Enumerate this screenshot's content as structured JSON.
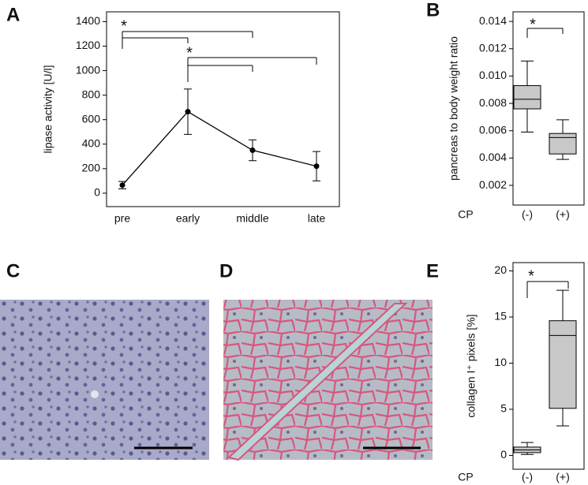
{
  "chart_data": [
    {
      "type": "line",
      "panel_label": "A",
      "ylabel": "lipase activity [U/l]",
      "categories": [
        "pre",
        "early",
        "middle",
        "late"
      ],
      "values": [
        65,
        665,
        350,
        220
      ],
      "errors": [
        30,
        185,
        85,
        120
      ],
      "color": "#000000",
      "ylim": [
        -110,
        1480
      ],
      "yticks": [
        0,
        200,
        400,
        600,
        800,
        1000,
        1200,
        1400
      ],
      "annotations": [
        "*",
        "*"
      ]
    },
    {
      "type": "box",
      "panel_label": "B",
      "ylabel": "pancreas to body weight ratio",
      "xlabel": "CP",
      "categories": [
        "(-)",
        "(+)"
      ],
      "color": "#c8c8c8",
      "boxes": [
        {
          "whisker_low": 0.0059,
          "q1": 0.0076,
          "median": 0.0083,
          "q3": 0.0093,
          "whisker_high": 0.0111
        },
        {
          "whisker_low": 0.0039,
          "q1": 0.0043,
          "median": 0.0055,
          "q3": 0.0058,
          "whisker_high": 0.0068
        }
      ],
      "ylim": [
        0.00056,
        0.0147
      ],
      "yticks": [
        0.002,
        0.004,
        0.006,
        0.008,
        {
          "value": 0.01,
          "label": "0.010"
        },
        0.012,
        0.014
      ],
      "annotations": [
        "*"
      ]
    },
    {
      "type": "box",
      "panel_label": "E",
      "ylabel": "collagen I⁺ pixels [%]",
      "xlabel": "CP",
      "categories": [
        "(-)",
        "(+)"
      ],
      "color": "#c8c8c8",
      "boxes": [
        {
          "whisker_low": 0.1,
          "q1": 0.3,
          "median": 0.6,
          "q3": 0.9,
          "whisker_high": 1.4
        },
        {
          "whisker_low": 3.2,
          "q1": 5.1,
          "median": 13,
          "q3": 14.6,
          "whisker_high": 17.9
        }
      ],
      "ylim": [
        -1.5,
        20.9
      ],
      "yticks": [
        0,
        5,
        10,
        15,
        20
      ],
      "annotations": [
        "*"
      ]
    }
  ],
  "image_panels": [
    {
      "panel_label": "C"
    },
    {
      "panel_label": "D"
    }
  ]
}
